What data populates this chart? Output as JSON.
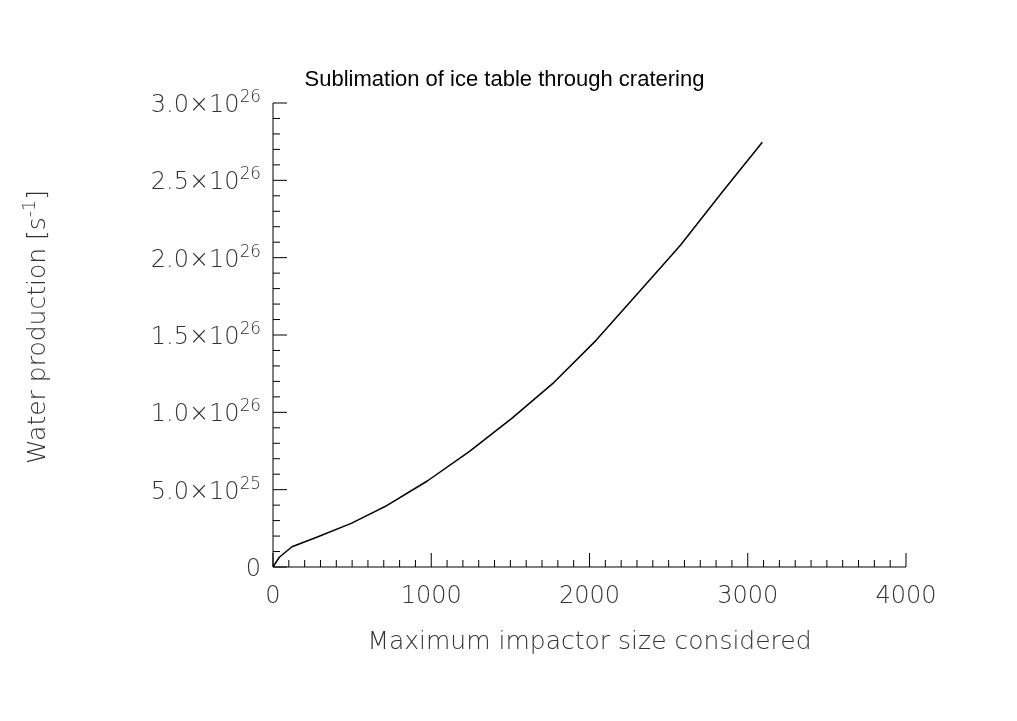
{
  "chart_data": {
    "type": "line",
    "title": "Sublimation of ice table through cratering",
    "xlabel": "Maximum impactor size considered",
    "ylabel": "Water production [s$^{-1}$]",
    "x": [
      0,
      40,
      120,
      280,
      494,
      708,
      975,
      1242,
      1509,
      1776,
      2043,
      2310,
      2577,
      2844,
      3092
    ],
    "series": [
      {
        "color": "#000000",
        "values": [
          0,
          6.3e+24,
          1.31e+25,
          1.94e+25,
          2.82e+25,
          3.91e+25,
          5.56e+25,
          7.47e+25,
          9.61e+25,
          1.194e+26,
          1.467e+26,
          1.774e+26,
          2.083e+26,
          2.431e+26,
          2.746e+26
        ]
      }
    ],
    "xlim": [
      0,
      4000
    ],
    "ylim": [
      0,
      3e+26
    ],
    "xticks": [
      0,
      {
        "value": 100,
        "label": null
      },
      {
        "value": 200,
        "label": null
      },
      {
        "value": 300,
        "label": null
      },
      {
        "value": 400,
        "label": null
      },
      {
        "value": 500,
        "label": null
      },
      {
        "value": 600,
        "label": null
      },
      {
        "value": 700,
        "label": null
      },
      {
        "value": 800,
        "label": null
      },
      {
        "value": 900,
        "label": null
      },
      1000,
      {
        "value": 1100,
        "label": null
      },
      {
        "value": 1200,
        "label": null
      },
      {
        "value": 1300,
        "label": null
      },
      {
        "value": 1400,
        "label": null
      },
      {
        "value": 1500,
        "label": null
      },
      {
        "value": 1600,
        "label": null
      },
      {
        "value": 1700,
        "label": null
      },
      {
        "value": 1800,
        "label": null
      },
      {
        "value": 1900,
        "label": null
      },
      2000,
      {
        "value": 2100,
        "label": null
      },
      {
        "value": 2200,
        "label": null
      },
      {
        "value": 2300,
        "label": null
      },
      {
        "value": 2400,
        "label": null
      },
      {
        "value": 2500,
        "label": null
      },
      {
        "value": 2600,
        "label": null
      },
      {
        "value": 2700,
        "label": null
      },
      {
        "value": 2800,
        "label": null
      },
      {
        "value": 2900,
        "label": null
      },
      3000,
      {
        "value": 3100,
        "label": null
      },
      {
        "value": 3200,
        "label": null
      },
      {
        "value": 3300,
        "label": null
      },
      {
        "value": 3400,
        "label": null
      },
      {
        "value": 3500,
        "label": null
      },
      {
        "value": 3600,
        "label": null
      },
      {
        "value": 3700,
        "label": null
      },
      {
        "value": 3800,
        "label": null
      },
      {
        "value": 3900,
        "label": null
      },
      4000
    ],
    "yticks": [
      0,
      {
        "value": 1e+25,
        "label": null
      },
      {
        "value": 2e+25,
        "label": null
      },
      {
        "value": 3e+25,
        "label": null
      },
      {
        "value": 4e+25,
        "label": null
      },
      {
        "value": 5e+25,
        "label": "5.0×10$^{25}$"
      },
      {
        "value": 6e+25,
        "label": null
      },
      {
        "value": 7e+25,
        "label": null
      },
      {
        "value": 8e+25,
        "label": null
      },
      {
        "value": 9e+25,
        "label": null
      },
      {
        "value": 1e+26,
        "label": "1.0×10$^{26}$"
      },
      {
        "value": 1.1e+26,
        "label": null
      },
      {
        "value": 1.2e+26,
        "label": null
      },
      {
        "value": 1.3e+26,
        "label": null
      },
      {
        "value": 1.4e+26,
        "label": null
      },
      {
        "value": 1.5e+26,
        "label": "1.5×10$^{26}$"
      },
      {
        "value": 1.6e+26,
        "label": null
      },
      {
        "value": 1.7e+26,
        "label": null
      },
      {
        "value": 1.8e+26,
        "label": null
      },
      {
        "value": 1.9e+26,
        "label": null
      },
      {
        "value": 2e+26,
        "label": "2.0×10$^{26}$"
      },
      {
        "value": 2.1e+26,
        "label": null
      },
      {
        "value": 2.2e+26,
        "label": null
      },
      {
        "value": 2.3e+26,
        "label": null
      },
      {
        "value": 2.4e+26,
        "label": null
      },
      {
        "value": 2.5e+26,
        "label": "2.5×10$^{26}$"
      },
      {
        "value": 2.6e+26,
        "label": null
      },
      {
        "value": 2.7e+26,
        "label": null
      },
      {
        "value": 2.8e+26,
        "label": null
      },
      {
        "value": 2.9e+26,
        "label": null
      },
      {
        "value": 3e+26,
        "label": "3.0×10$^{26}$"
      }
    ],
    "marker": "none",
    "line_style": "solid",
    "grid": false,
    "legend": false
  }
}
